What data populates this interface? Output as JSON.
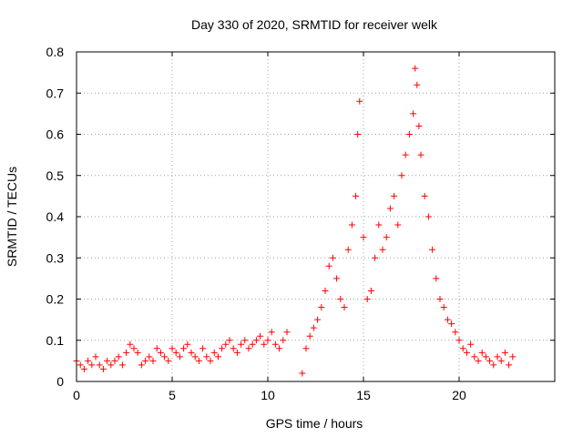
{
  "chart_data": {
    "type": "scatter",
    "title": "Day 330 of 2020, SRMTID for receiver welk",
    "xlabel": "GPS time / hours",
    "ylabel": "SRMTID / TECUs",
    "xlim": [
      0,
      25
    ],
    "ylim": [
      0,
      0.8
    ],
    "xticks": [
      0,
      5,
      10,
      15,
      20
    ],
    "yticks": [
      0,
      0.1,
      0.2,
      0.3,
      0.4,
      0.5,
      0.6,
      0.7,
      0.8
    ],
    "xtick_labels": [
      "0",
      "5",
      "10",
      "15",
      "20"
    ],
    "ytick_labels": [
      "0",
      "0.1",
      "0.2",
      "0.3",
      "0.4",
      "0.5",
      "0.6",
      "0.7",
      "0.8"
    ],
    "grid": true,
    "marker": "+",
    "marker_color": "#ff0000",
    "series": [
      {
        "name": "SRMTID",
        "x": [
          0.0,
          0.2,
          0.4,
          0.6,
          0.8,
          1.0,
          1.2,
          1.4,
          1.6,
          1.8,
          2.0,
          2.2,
          2.4,
          2.6,
          2.8,
          3.0,
          3.2,
          3.4,
          3.6,
          3.8,
          4.0,
          4.2,
          4.4,
          4.6,
          4.8,
          5.0,
          5.2,
          5.4,
          5.6,
          5.8,
          6.0,
          6.2,
          6.4,
          6.6,
          6.8,
          7.0,
          7.2,
          7.4,
          7.6,
          7.8,
          8.0,
          8.2,
          8.4,
          8.6,
          8.8,
          9.0,
          9.2,
          9.4,
          9.6,
          9.8,
          10.0,
          10.2,
          10.4,
          10.6,
          10.8,
          11.0,
          11.8,
          12.0,
          12.2,
          12.4,
          12.6,
          12.8,
          13.0,
          13.2,
          13.4,
          13.6,
          13.8,
          14.0,
          14.2,
          14.4,
          14.6,
          14.7,
          14.8,
          15.0,
          15.2,
          15.4,
          15.6,
          15.8,
          16.0,
          16.2,
          16.4,
          16.6,
          16.8,
          17.0,
          17.2,
          17.4,
          17.6,
          17.7,
          17.8,
          17.9,
          18.0,
          18.2,
          18.4,
          18.6,
          18.8,
          19.0,
          19.2,
          19.4,
          19.6,
          19.8,
          20.0,
          20.2,
          20.4,
          20.6,
          20.8,
          21.0,
          21.2,
          21.4,
          21.6,
          21.8,
          22.0,
          22.2,
          22.4,
          22.6,
          22.8
        ],
        "y": [
          0.05,
          0.04,
          0.03,
          0.05,
          0.04,
          0.06,
          0.04,
          0.03,
          0.05,
          0.04,
          0.05,
          0.06,
          0.04,
          0.07,
          0.09,
          0.08,
          0.07,
          0.04,
          0.05,
          0.06,
          0.05,
          0.08,
          0.07,
          0.06,
          0.05,
          0.08,
          0.07,
          0.06,
          0.08,
          0.09,
          0.07,
          0.06,
          0.05,
          0.08,
          0.06,
          0.05,
          0.07,
          0.06,
          0.08,
          0.09,
          0.1,
          0.08,
          0.07,
          0.09,
          0.1,
          0.08,
          0.09,
          0.1,
          0.11,
          0.09,
          0.1,
          0.12,
          0.09,
          0.08,
          0.1,
          0.12,
          0.02,
          0.08,
          0.11,
          0.13,
          0.15,
          0.18,
          0.22,
          0.28,
          0.3,
          0.25,
          0.2,
          0.18,
          0.32,
          0.38,
          0.45,
          0.6,
          0.68,
          0.35,
          0.2,
          0.22,
          0.3,
          0.38,
          0.32,
          0.35,
          0.42,
          0.45,
          0.38,
          0.5,
          0.55,
          0.6,
          0.65,
          0.76,
          0.72,
          0.62,
          0.55,
          0.45,
          0.4,
          0.32,
          0.25,
          0.2,
          0.18,
          0.15,
          0.14,
          0.12,
          0.1,
          0.08,
          0.07,
          0.09,
          0.06,
          0.05,
          0.07,
          0.06,
          0.05,
          0.04,
          0.06,
          0.05,
          0.07,
          0.04,
          0.06
        ]
      }
    ]
  }
}
